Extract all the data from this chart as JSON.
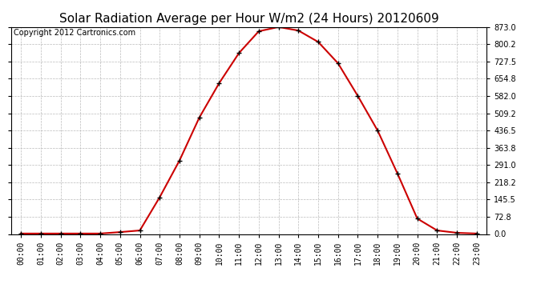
{
  "title": "Solar Radiation Average per Hour W/m2 (24 Hours) 20120609",
  "copyright": "Copyright 2012 Cartronics.com",
  "hours": [
    "00:00",
    "01:00",
    "02:00",
    "03:00",
    "04:00",
    "05:00",
    "06:00",
    "07:00",
    "08:00",
    "09:00",
    "10:00",
    "11:00",
    "12:00",
    "13:00",
    "14:00",
    "15:00",
    "16:00",
    "17:00",
    "18:00",
    "19:00",
    "20:00",
    "21:00",
    "22:00",
    "23:00"
  ],
  "values": [
    2,
    2,
    2,
    2,
    2,
    8,
    15,
    155,
    310,
    491,
    636,
    763,
    855,
    873,
    858,
    810,
    720,
    582,
    436,
    255,
    65,
    15,
    5,
    2
  ],
  "line_color": "#cc0000",
  "marker": "+",
  "marker_color": "#000000",
  "bg_color": "#ffffff",
  "grid_color": "#bbbbbb",
  "ylim_min": 0.0,
  "ylim_max": 873.0,
  "ytick_values": [
    0.0,
    72.8,
    145.5,
    218.2,
    291.0,
    363.8,
    436.5,
    509.2,
    582.0,
    654.8,
    727.5,
    800.2,
    873.0
  ],
  "title_fontsize": 11,
  "copyright_fontsize": 7,
  "tick_fontsize": 7,
  "axis_bg_color": "#ffffff"
}
